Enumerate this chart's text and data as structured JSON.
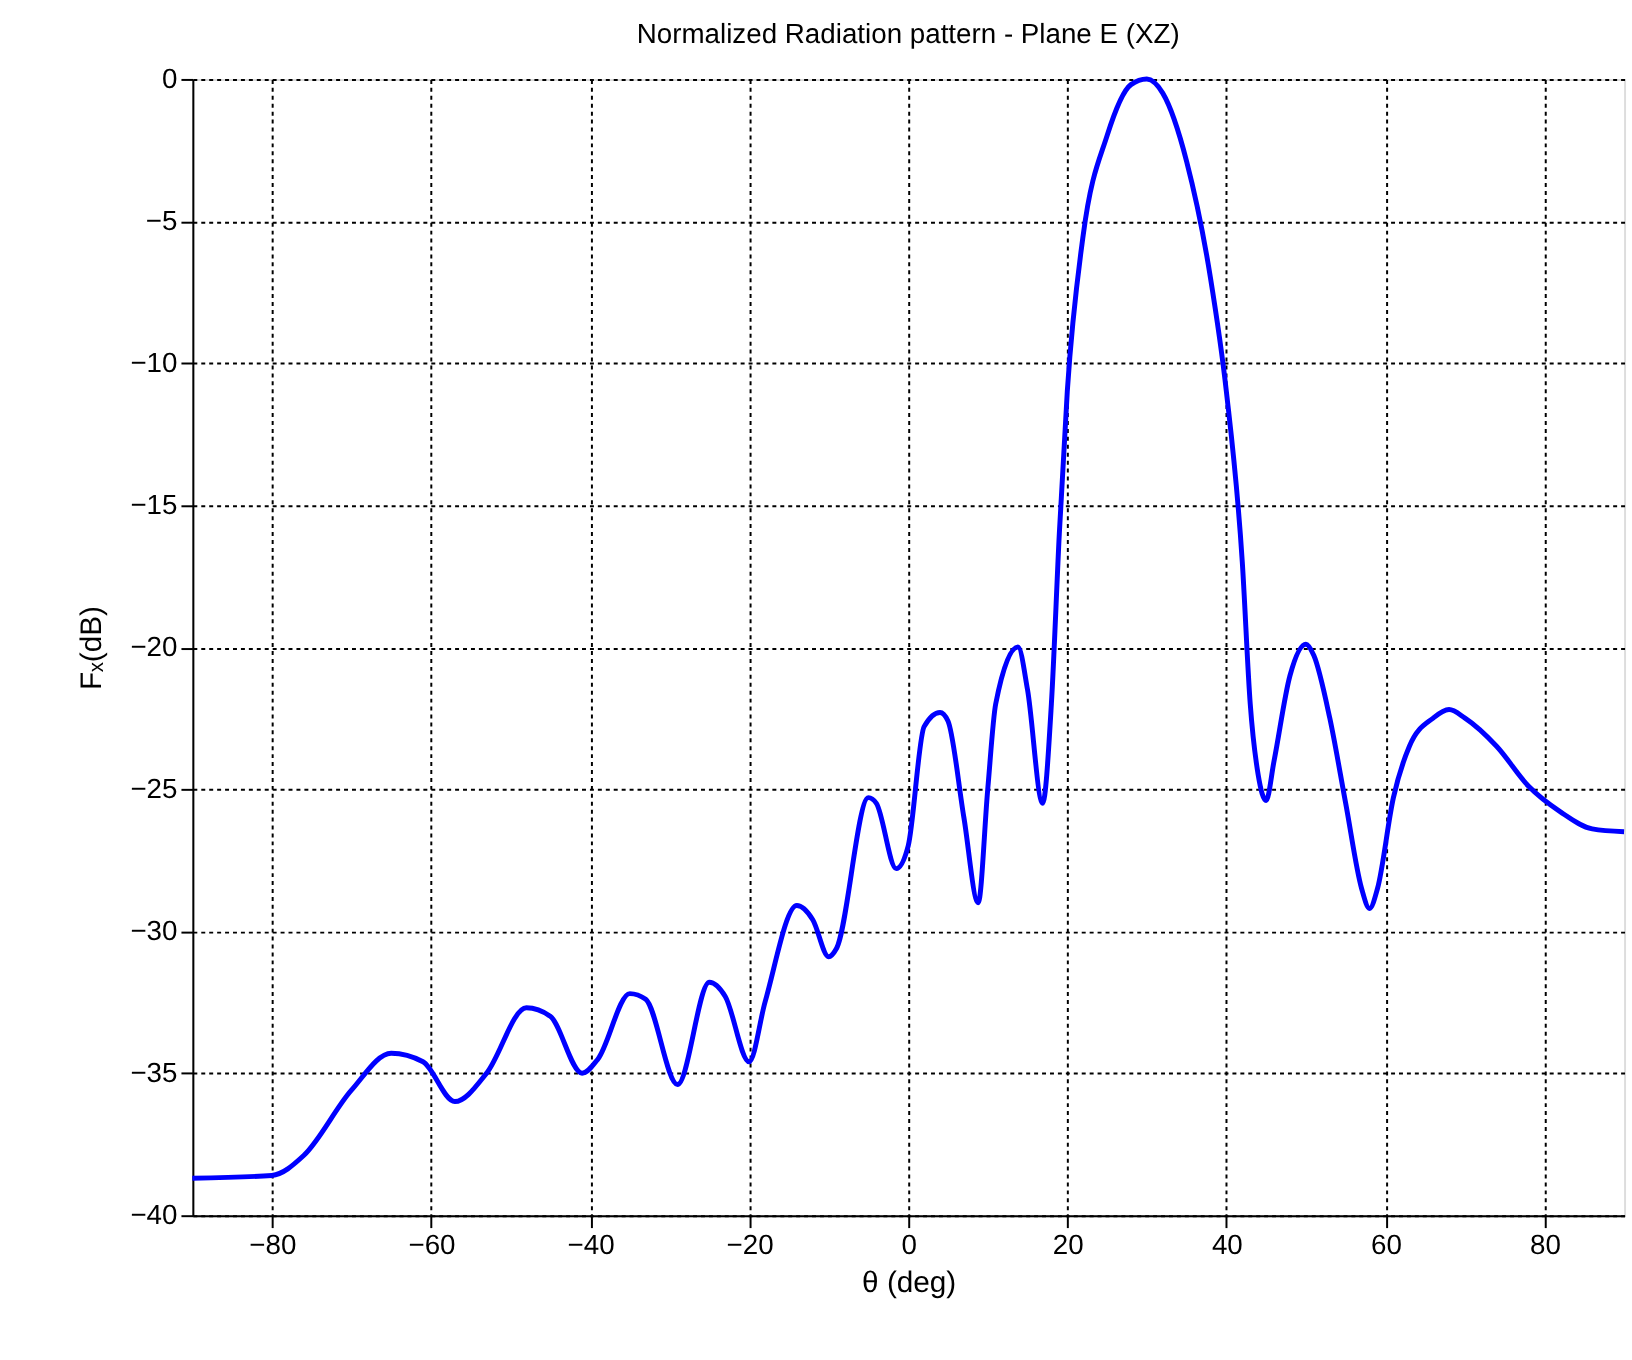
{
  "chart_data": {
    "type": "line",
    "title": "Normalized Radiation pattern - Plane E (XZ)",
    "xlabel": "θ (deg)",
    "ylabel": "Fₓ(dB)",
    "xlim": [
      -90,
      90
    ],
    "xticks": [
      -80,
      -60,
      -40,
      -20,
      0,
      20,
      40,
      60,
      80
    ],
    "ylim": [
      -40,
      0
    ],
    "yticks": [
      -40,
      -35,
      -30,
      -25,
      -20,
      -15,
      -10,
      -5,
      0
    ],
    "grid": true,
    "line_style": "solid",
    "marker": "none",
    "series": [
      {
        "color": "#0000ff",
        "x": [
          -90,
          -80,
          -76,
          -70,
          -65,
          -61,
          -57,
          -53,
          -48,
          -45,
          -41,
          -39,
          -35,
          -33,
          -29,
          -25,
          -23,
          -20,
          -18,
          -14,
          -12,
          -10,
          -9,
          -5,
          -4,
          -1.5,
          0,
          2,
          4,
          5,
          7,
          8.8,
          10,
          11,
          13.8,
          15,
          16.9,
          18,
          19,
          20,
          22,
          25,
          28,
          30,
          32,
          35,
          38,
          40,
          42,
          43,
          44,
          45,
          46,
          48,
          50,
          51,
          53,
          55,
          57,
          58,
          59,
          61,
          63,
          66,
          68,
          70,
          74,
          78,
          82,
          86,
          90
        ],
        "values": [
          -38.7,
          -38.6,
          -37.9,
          -35.6,
          -34.3,
          -34.6,
          -36.0,
          -35.0,
          -32.7,
          -33.0,
          -35.0,
          -34.5,
          -32.2,
          -32.4,
          -35.4,
          -31.8,
          -32.3,
          -34.6,
          -32.5,
          -29.1,
          -29.6,
          -30.9,
          -30.6,
          -25.3,
          -25.5,
          -27.8,
          -27.0,
          -22.8,
          -22.3,
          -22.6,
          -26.0,
          -29.0,
          -25.0,
          -22.0,
          -20.0,
          -21.5,
          -25.5,
          -22.0,
          -16.0,
          -11.0,
          -5.5,
          -2.0,
          -0.2,
          0,
          -0.5,
          -2.9,
          -7.0,
          -11.0,
          -17.0,
          -22.0,
          -24.5,
          -25.4,
          -24.0,
          -21.0,
          -19.9,
          -20.3,
          -22.5,
          -25.5,
          -28.5,
          -29.2,
          -28.5,
          -25.3,
          -23.5,
          -22.5,
          -22.2,
          -22.5,
          -23.5,
          -24.9,
          -25.8,
          -26.4,
          -26.5
        ]
      }
    ]
  }
}
